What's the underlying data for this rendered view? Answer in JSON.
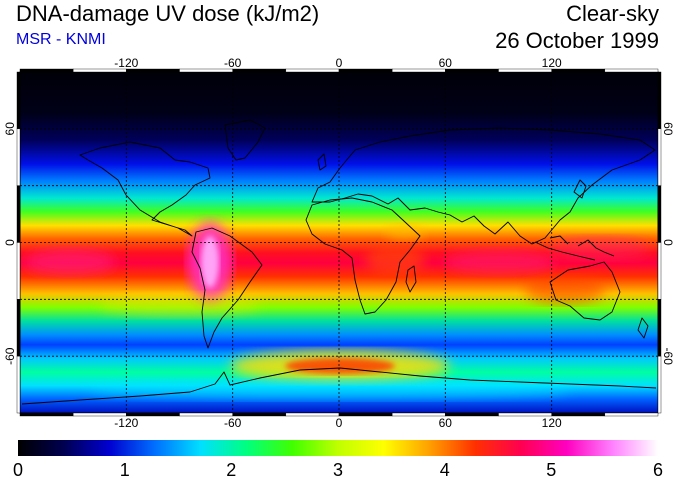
{
  "header": {
    "title": "DNA-damage UV dose (kJ/m2)",
    "source": "MSR - KNMI",
    "sky_condition": "Clear-sky",
    "date": "26 October 1999"
  },
  "map": {
    "projection": "equirectangular",
    "lon_range": [
      -180,
      180
    ],
    "lat_range": [
      -90,
      90
    ],
    "lon_ticks": [
      "-120",
      "-60",
      "0",
      "60",
      "120"
    ],
    "lat_ticks": [
      "60",
      "0",
      "-60"
    ],
    "gridlines": "dashed, every 30 degrees",
    "coastlines": true
  },
  "colorbar": {
    "ticks": [
      "0",
      "1",
      "2",
      "3",
      "4",
      "5",
      "6"
    ],
    "colors": [
      "#000000",
      "#000050",
      "#0000d0",
      "#0070ff",
      "#00e0ff",
      "#00ff80",
      "#40ff00",
      "#c0ff00",
      "#ffff00",
      "#ffa000",
      "#ff3000",
      "#ff0050",
      "#ff00c0",
      "#ff80ff",
      "#ffffff"
    ]
  }
}
